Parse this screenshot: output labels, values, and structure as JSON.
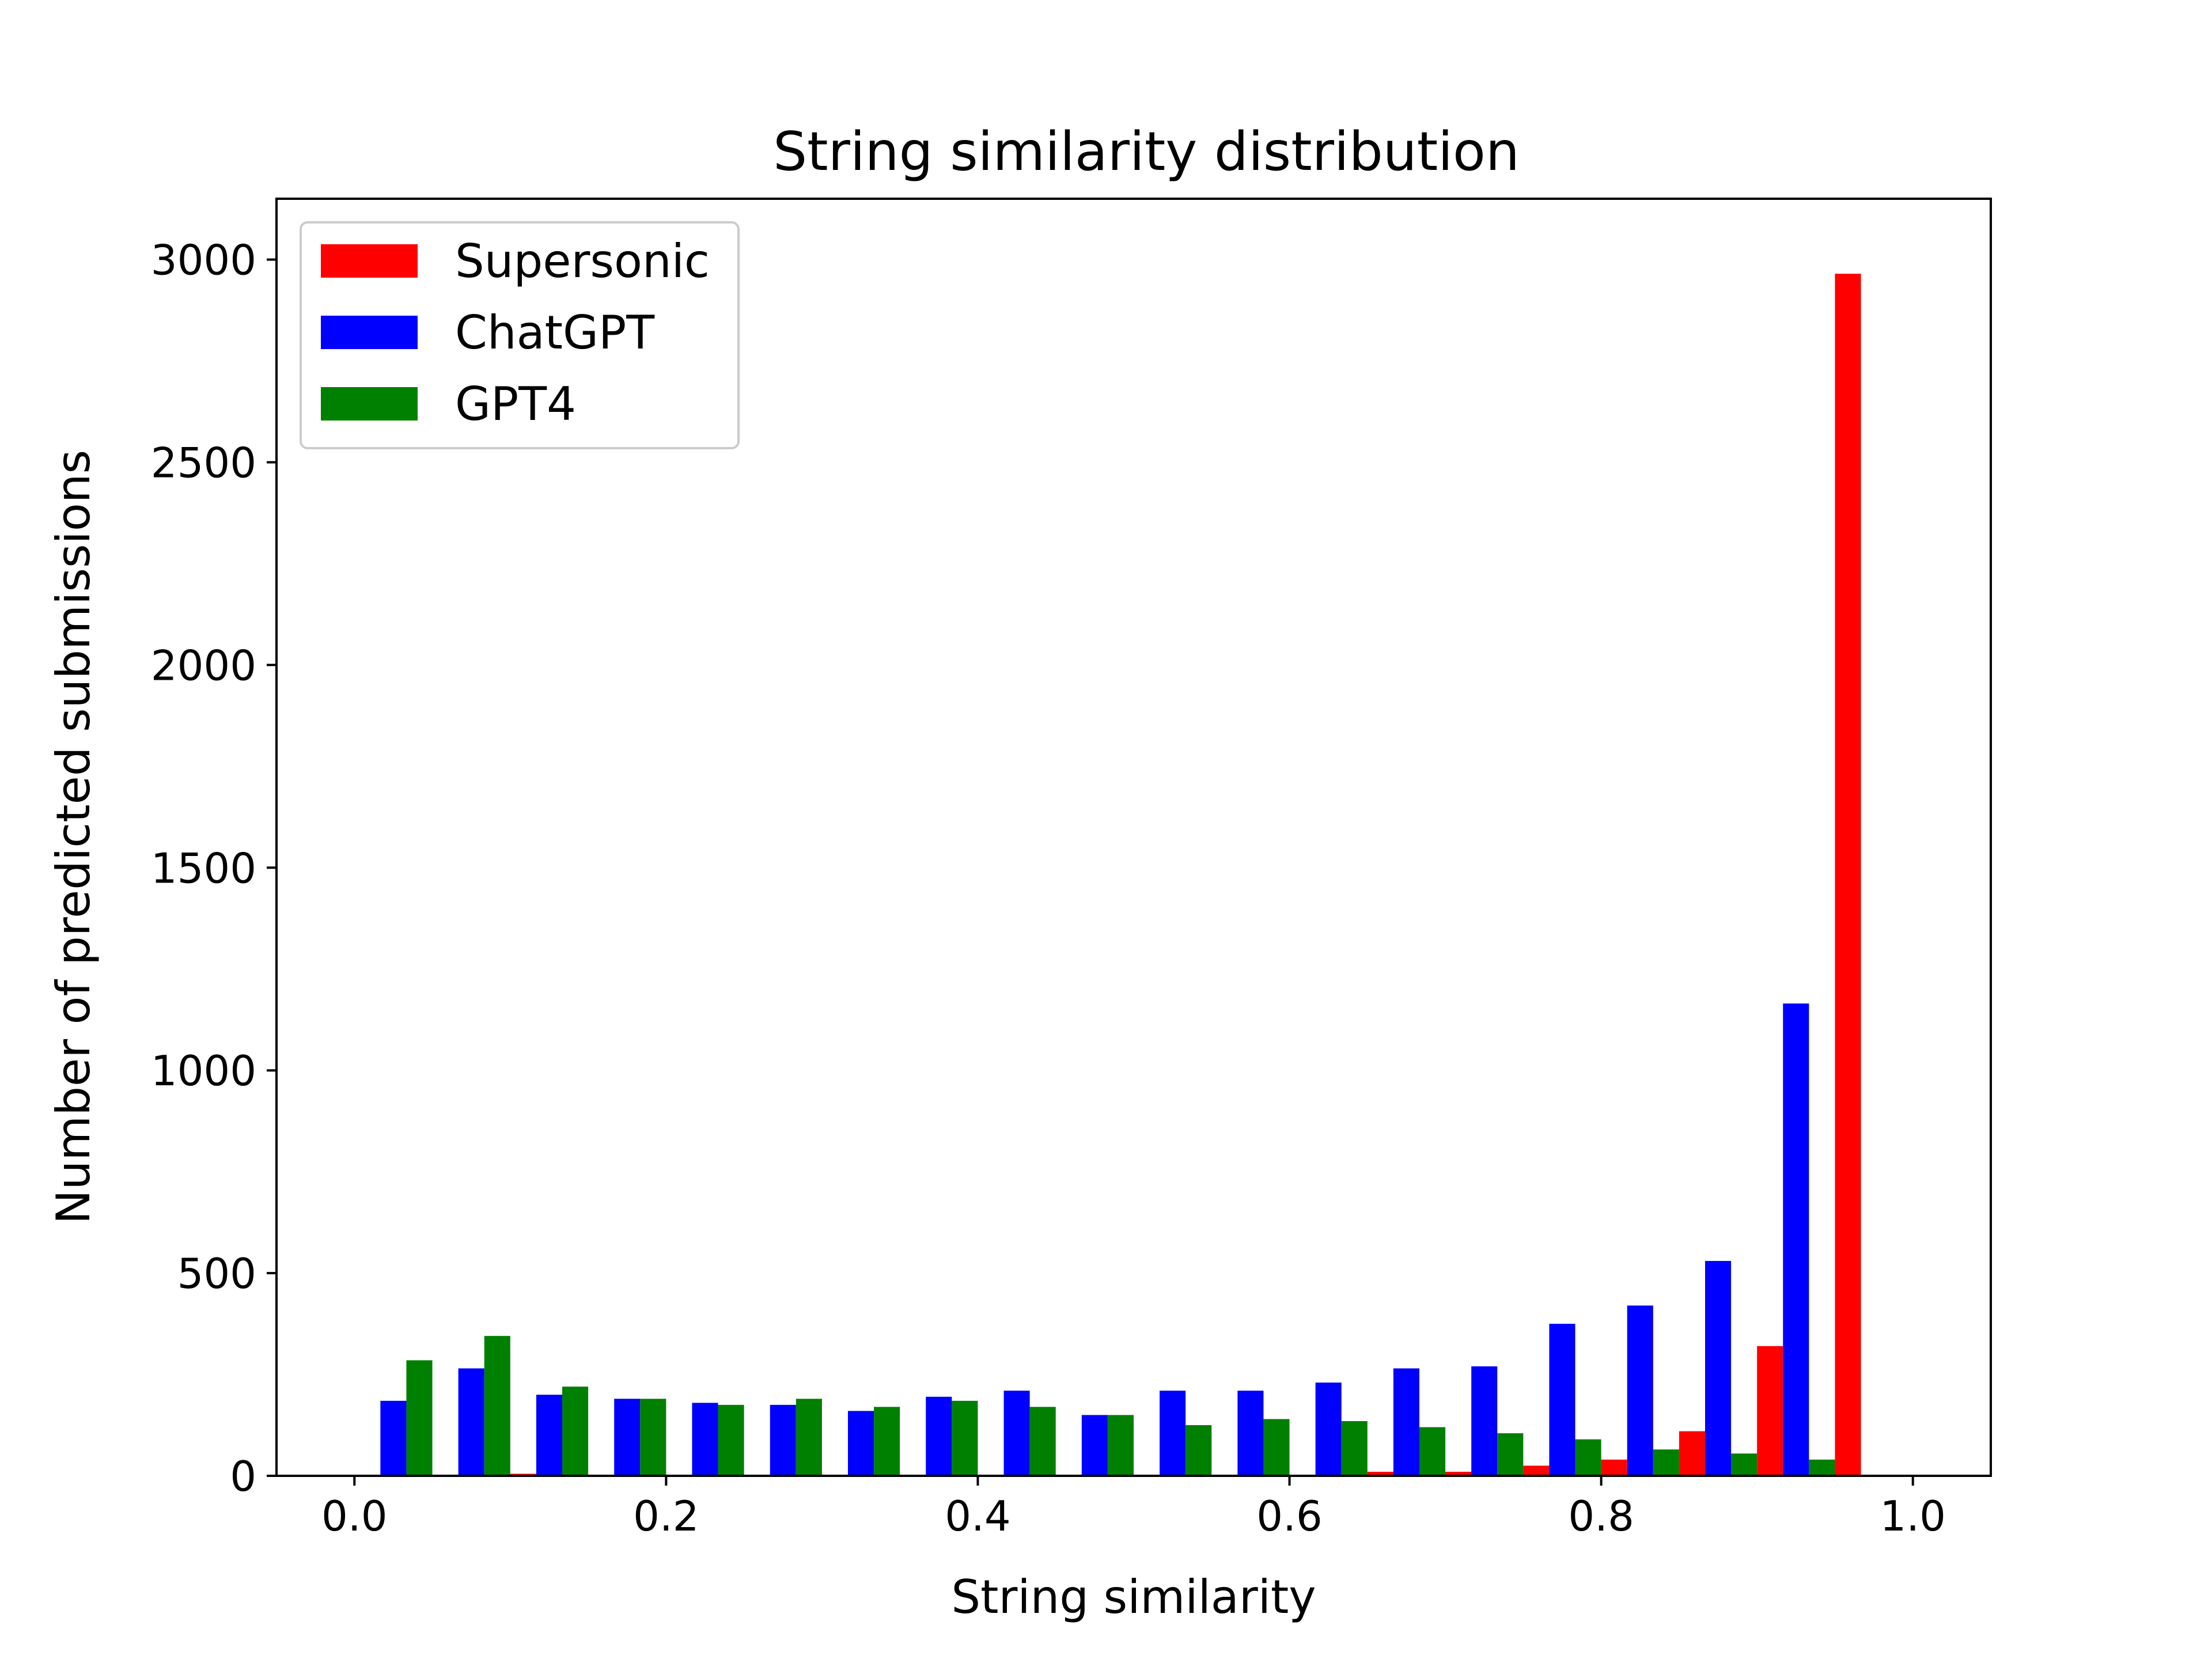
{
  "chart_data": {
    "type": "bar",
    "title": "String similarity distribution",
    "xlabel": "String similarity",
    "ylabel": "Number of predicted submissions",
    "xlim": [
      -0.05,
      1.05
    ],
    "ylim": [
      0,
      3150
    ],
    "xticks": [
      "0.0",
      "0.2",
      "0.4",
      "0.6",
      "0.8",
      "1.0"
    ],
    "xtick_values": [
      0.0,
      0.2,
      0.4,
      0.6,
      0.8,
      1.0
    ],
    "yticks": [
      "0",
      "500",
      "1000",
      "1500",
      "2000",
      "2500",
      "3000"
    ],
    "ytick_values": [
      0,
      500,
      1000,
      1500,
      2000,
      2500,
      3000
    ],
    "grid": false,
    "legend_position": "top-left",
    "bin_starts": [
      0.0,
      0.05,
      0.1,
      0.15,
      0.2,
      0.25,
      0.3,
      0.35,
      0.4,
      0.45,
      0.5,
      0.55,
      0.6,
      0.65,
      0.7,
      0.75,
      0.8,
      0.85,
      0.9,
      0.95
    ],
    "bin_width": 0.05,
    "series": [
      {
        "name": "Supersonic",
        "color": "#ff0000",
        "values": [
          0,
          0,
          5,
          0,
          0,
          0,
          0,
          0,
          0,
          0,
          0,
          0,
          0,
          10,
          10,
          25,
          40,
          110,
          320,
          2965
        ]
      },
      {
        "name": "ChatGPT",
        "color": "#0000ff",
        "values": [
          185,
          265,
          200,
          190,
          180,
          175,
          160,
          195,
          210,
          150,
          210,
          210,
          230,
          265,
          270,
          375,
          420,
          530,
          1165,
          0
        ]
      },
      {
        "name": "GPT4",
        "color": "#008000",
        "values": [
          285,
          345,
          220,
          190,
          175,
          190,
          170,
          185,
          170,
          150,
          125,
          140,
          135,
          120,
          105,
          90,
          65,
          55,
          40,
          0
        ]
      }
    ]
  }
}
